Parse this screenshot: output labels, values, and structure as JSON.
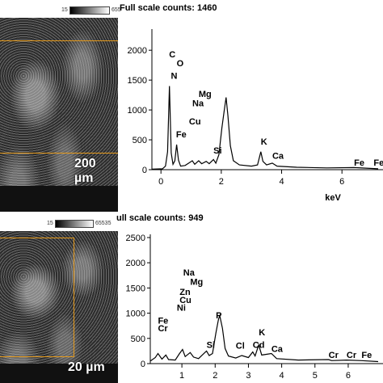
{
  "panels": [
    {
      "lut_left": "15",
      "lut_right": "655",
      "full_scale": "Full scale counts: 1460",
      "scalebar": "200 µm",
      "chart_data": {
        "type": "line",
        "title": "Full scale counts: 1460",
        "xlabel": "keV",
        "ylabel": "",
        "xlim": [
          -0.3,
          7.2
        ],
        "ylim": [
          0,
          2300
        ],
        "x_ticks": [
          0,
          2,
          4,
          6
        ],
        "y_ticks": [
          0,
          500,
          1000,
          1500,
          2000
        ],
        "grid": false,
        "points": [
          [
            -0.3,
            10
          ],
          [
            0.05,
            15
          ],
          [
            0.15,
            60
          ],
          [
            0.22,
            300
          ],
          [
            0.28,
            1400
          ],
          [
            0.34,
            280
          ],
          [
            0.4,
            90
          ],
          [
            0.46,
            150
          ],
          [
            0.52,
            420
          ],
          [
            0.58,
            160
          ],
          [
            0.65,
            60
          ],
          [
            0.8,
            70
          ],
          [
            0.95,
            120
          ],
          [
            1.04,
            150
          ],
          [
            1.12,
            90
          ],
          [
            1.25,
            150
          ],
          [
            1.35,
            100
          ],
          [
            1.5,
            140
          ],
          [
            1.6,
            100
          ],
          [
            1.74,
            170
          ],
          [
            1.82,
            110
          ],
          [
            1.92,
            250
          ],
          [
            2.02,
            700
          ],
          [
            2.1,
            1000
          ],
          [
            2.16,
            1210
          ],
          [
            2.22,
            900
          ],
          [
            2.3,
            400
          ],
          [
            2.4,
            150
          ],
          [
            2.6,
            80
          ],
          [
            3.0,
            60
          ],
          [
            3.2,
            80
          ],
          [
            3.31,
            300
          ],
          [
            3.38,
            140
          ],
          [
            3.5,
            80
          ],
          [
            3.69,
            110
          ],
          [
            3.85,
            60
          ],
          [
            4.5,
            40
          ],
          [
            5.5,
            30
          ],
          [
            6.4,
            35
          ],
          [
            7.0,
            20
          ],
          [
            7.2,
            15
          ]
        ],
        "peak_labels": [
          {
            "text": "C",
            "x": 0.27,
            "y": 1880
          },
          {
            "text": "O",
            "x": 0.52,
            "y": 1730
          },
          {
            "text": "N",
            "x": 0.33,
            "y": 1520
          },
          {
            "text": "Mg",
            "x": 1.25,
            "y": 1220
          },
          {
            "text": "Na",
            "x": 1.04,
            "y": 1060
          },
          {
            "text": "Cu",
            "x": 0.93,
            "y": 760
          },
          {
            "text": "Fe",
            "x": 0.5,
            "y": 540
          },
          {
            "text": "Si",
            "x": 1.74,
            "y": 270
          },
          {
            "text": "K",
            "x": 3.31,
            "y": 420
          },
          {
            "text": "Ca",
            "x": 3.69,
            "y": 180
          },
          {
            "text": "Fe",
            "x": 6.4,
            "y": 70
          },
          {
            "text": "Fe",
            "x": 7.05,
            "y": 70
          }
        ]
      }
    },
    {
      "lut_left": "15",
      "lut_right": "65535",
      "full_scale": "ull scale counts: 949",
      "scalebar": "20 µm",
      "chart_data": {
        "type": "line",
        "title": "ull scale counts: 949",
        "xlabel": "",
        "ylabel": "",
        "xlim": [
          0.05,
          6.9
        ],
        "ylim": [
          0,
          2500
        ],
        "x_ticks": [
          1,
          2,
          3,
          4,
          5,
          6
        ],
        "y_ticks": [
          0,
          500,
          1000,
          1500,
          2000,
          2500
        ],
        "grid": false,
        "points": [
          [
            0.05,
            50
          ],
          [
            0.2,
            120
          ],
          [
            0.28,
            200
          ],
          [
            0.4,
            90
          ],
          [
            0.52,
            170
          ],
          [
            0.6,
            80
          ],
          [
            0.8,
            70
          ],
          [
            0.93,
            200
          ],
          [
            1.02,
            280
          ],
          [
            1.1,
            140
          ],
          [
            1.25,
            220
          ],
          [
            1.35,
            130
          ],
          [
            1.5,
            100
          ],
          [
            1.74,
            250
          ],
          [
            1.82,
            160
          ],
          [
            1.92,
            200
          ],
          [
            2.02,
            600
          ],
          [
            2.1,
            880
          ],
          [
            2.14,
            950
          ],
          [
            2.22,
            700
          ],
          [
            2.3,
            300
          ],
          [
            2.4,
            150
          ],
          [
            2.62,
            110
          ],
          [
            2.8,
            160
          ],
          [
            3.0,
            120
          ],
          [
            3.13,
            230
          ],
          [
            3.2,
            150
          ],
          [
            3.31,
            370
          ],
          [
            3.4,
            170
          ],
          [
            3.69,
            200
          ],
          [
            3.85,
            100
          ],
          [
            4.5,
            70
          ],
          [
            5.41,
            80
          ],
          [
            5.5,
            60
          ],
          [
            5.95,
            70
          ],
          [
            6.4,
            60
          ],
          [
            6.9,
            40
          ]
        ],
        "peak_labels": [
          {
            "text": "Na",
            "x": 1.04,
            "y": 1750
          },
          {
            "text": "Mg",
            "x": 1.25,
            "y": 1560
          },
          {
            "text": "Zn",
            "x": 0.93,
            "y": 1360
          },
          {
            "text": "Cu",
            "x": 0.93,
            "y": 1200
          },
          {
            "text": "Ni",
            "x": 0.85,
            "y": 1050
          },
          {
            "text": "Fe",
            "x": 0.28,
            "y": 790
          },
          {
            "text": "Cr",
            "x": 0.28,
            "y": 640
          },
          {
            "text": "P",
            "x": 2.02,
            "y": 900
          },
          {
            "text": "K",
            "x": 3.31,
            "y": 560
          },
          {
            "text": "Si",
            "x": 1.74,
            "y": 310
          },
          {
            "text": "Cl",
            "x": 2.62,
            "y": 300
          },
          {
            "text": "Cd",
            "x": 3.13,
            "y": 310
          },
          {
            "text": "Ca",
            "x": 3.69,
            "y": 230
          },
          {
            "text": "Cr",
            "x": 5.41,
            "y": 110
          },
          {
            "text": "Cr",
            "x": 5.95,
            "y": 110
          },
          {
            "text": "Fe",
            "x": 6.4,
            "y": 110
          }
        ]
      }
    }
  ]
}
